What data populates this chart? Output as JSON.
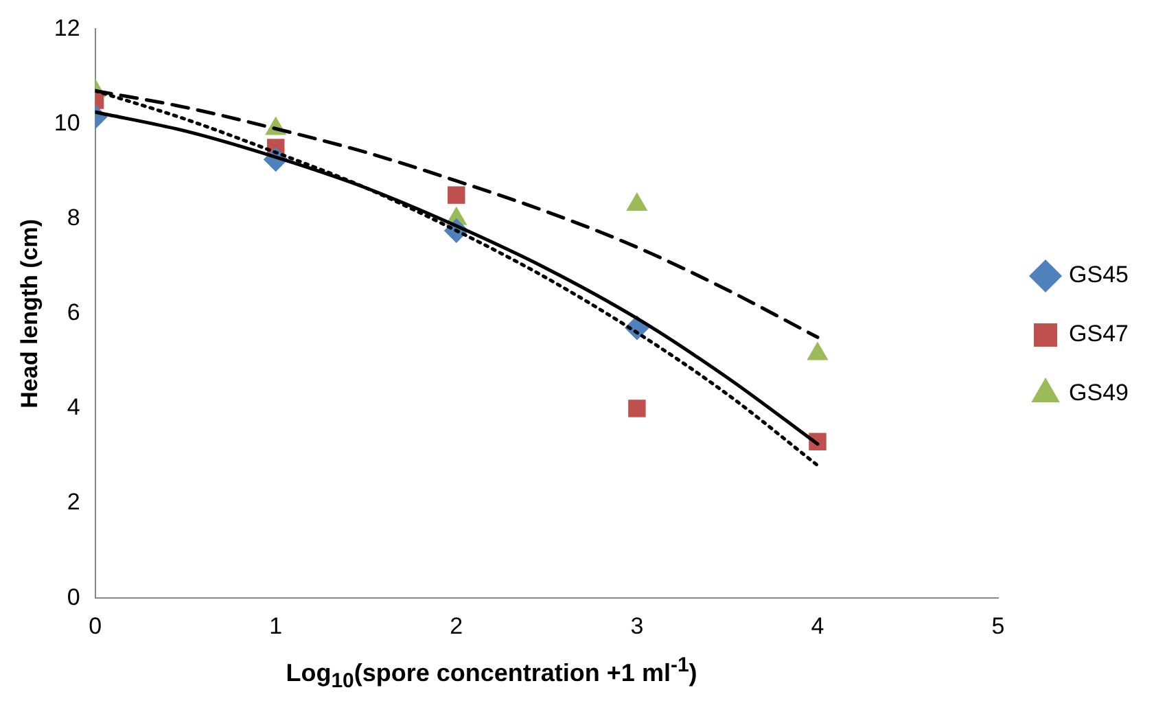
{
  "chart_data": {
    "type": "scatter",
    "xlabel": "Log$_{10}$(spore concentration +1 ml$^{-1}$)",
    "ylabel": "Head length (cm)",
    "xlim": [
      0,
      5
    ],
    "xticks": [
      0,
      1,
      2,
      3,
      4,
      5
    ],
    "ylim": [
      0,
      12
    ],
    "yticks": [
      0,
      2,
      4,
      6,
      8,
      10,
      12
    ],
    "grid": false,
    "legend": "right",
    "series": [
      {
        "name": "GS45",
        "marker": "diamond",
        "color": "#4f81bd",
        "x": [
          0,
          1,
          2,
          3
        ],
        "values": [
          10.15,
          9.25,
          7.75,
          5.7
        ]
      },
      {
        "name": "GS47",
        "marker": "square",
        "color": "#c0504d",
        "x": [
          0,
          1,
          2,
          3,
          4
        ],
        "values": [
          10.5,
          9.5,
          8.5,
          4.0,
          3.3
        ]
      },
      {
        "name": "GS49",
        "marker": "triangle",
        "color": "#9bbb59",
        "x": [
          0,
          1,
          2,
          3,
          4
        ],
        "values": [
          10.7,
          9.9,
          8.0,
          8.3,
          5.15
        ]
      },
      {
        "type": "line",
        "marker": "none",
        "line_style": "solid",
        "color": "#000000",
        "x": [
          0,
          0.5,
          1,
          1.5,
          2,
          2.5,
          3,
          3.5,
          4
        ],
        "values": [
          10.25,
          9.85,
          9.3,
          8.65,
          7.85,
          6.95,
          5.9,
          4.65,
          3.25
        ]
      },
      {
        "type": "line",
        "marker": "none",
        "line_style": "dotted",
        "color": "#000000",
        "x": [
          0,
          0.5,
          1,
          1.5,
          2,
          2.5,
          3,
          3.5,
          4
        ],
        "values": [
          10.7,
          10.1,
          9.4,
          8.65,
          7.75,
          6.75,
          5.6,
          4.3,
          2.8
        ]
      },
      {
        "type": "line",
        "marker": "none",
        "line_style": "dashed",
        "color": "#000000",
        "x": [
          0,
          0.5,
          1,
          1.5,
          2,
          2.5,
          3,
          3.5,
          4
        ],
        "values": [
          10.7,
          10.35,
          9.9,
          9.4,
          8.8,
          8.15,
          7.4,
          6.5,
          5.5
        ]
      }
    ]
  }
}
